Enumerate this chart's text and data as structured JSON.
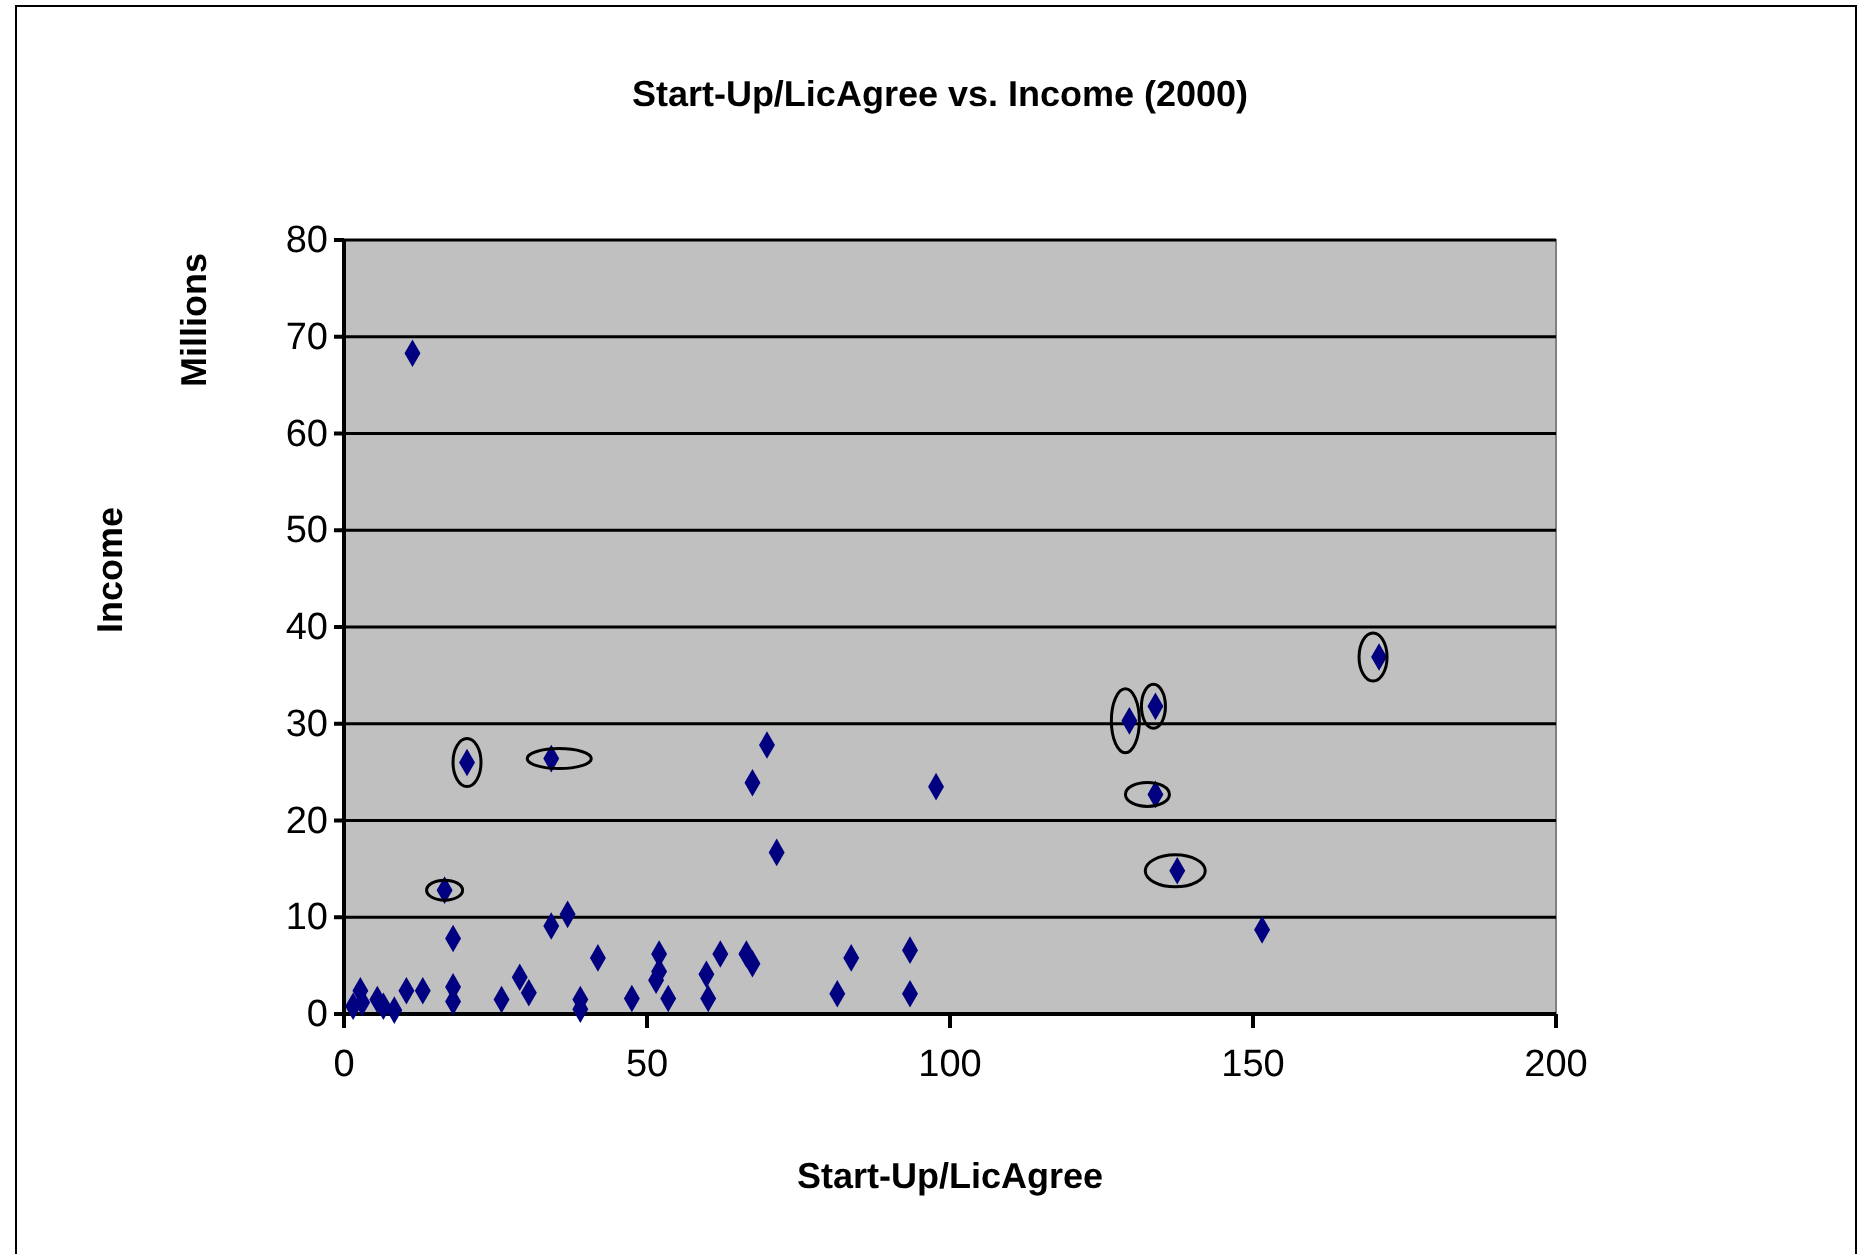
{
  "chart_data": {
    "type": "scatter",
    "title": "Start-Up/LicAgree vs. Income (2000)",
    "xlabel": "Start-Up/LicAgree",
    "ylabel": "Income",
    "annotations": [
      "Millions"
    ],
    "x": [
      1.5,
      2.7,
      3,
      5.5,
      6.5,
      8.3,
      10.3,
      13,
      11.3,
      16.6,
      18,
      18,
      18,
      20.3,
      26,
      29,
      30.5,
      34.2,
      34.2,
      36.9,
      39,
      39,
      41.9,
      47.5,
      52,
      52,
      51.5,
      53.5,
      59.8,
      60.1,
      62.1,
      66.4,
      67.4,
      67.4,
      69.8,
      71.4,
      81.4,
      83.7,
      93.4,
      93.4,
      97.7,
      129.6,
      133.9,
      133.9,
      137.5,
      151.5,
      170.8
    ],
    "series": [
      {
        "color": "#000080",
        "values": [
          0.8,
          2.4,
          1.2,
          1.5,
          0.8,
          0.4,
          2.4,
          2.4,
          68.3,
          12.8,
          7.8,
          2.8,
          1.3,
          26,
          1.5,
          3.8,
          2.2,
          26.4,
          9.1,
          10.3,
          1.5,
          0.5,
          5.8,
          1.6,
          6.2,
          4.4,
          3.5,
          1.6,
          4.1,
          1.6,
          6.2,
          6.2,
          5.2,
          23.9,
          27.8,
          16.7,
          2.1,
          5.8,
          6.6,
          2.1,
          23.5,
          30.3,
          31.8,
          22.7,
          14.8,
          8.7,
          36.9
        ]
      }
    ],
    "xlim": [
      0,
      200
    ],
    "xticks": [
      0,
      50,
      100,
      150,
      200
    ],
    "ylim": [
      0,
      80
    ],
    "yticks": [
      0,
      10,
      20,
      30,
      40,
      50,
      60,
      70,
      80
    ],
    "grid": "y",
    "marker": "diamond"
  }
}
